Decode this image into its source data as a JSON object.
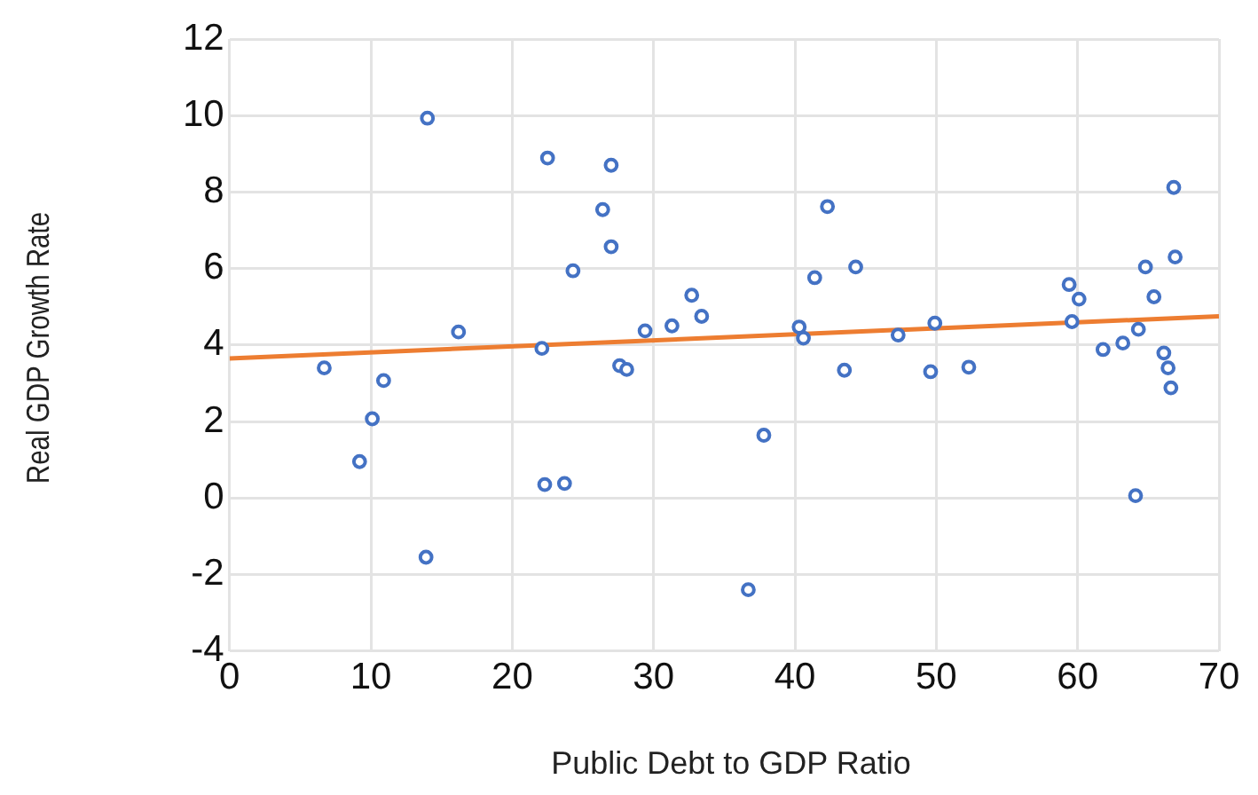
{
  "chart_data": {
    "type": "scatter",
    "xlabel": "Public Debt to GDP Ratio",
    "ylabel": "Real GDP Growth Rate",
    "xlim": [
      0,
      70
    ],
    "xticks": [
      0,
      10,
      20,
      30,
      40,
      50,
      60,
      70
    ],
    "ylim": [
      -4,
      12
    ],
    "yticks": [
      -4,
      -2,
      0,
      2,
      4,
      6,
      8,
      10,
      12
    ],
    "grid": true,
    "legend": false,
    "marker": "circle",
    "series": [
      {
        "type": "scatter",
        "color": "#4472c4",
        "x": [
          6.7,
          10.9,
          10.1,
          9.2,
          14.0,
          13.9,
          16.2,
          22.5,
          22.1,
          22.3,
          23.7,
          24.3,
          27.0,
          26.4,
          27.0,
          29.4,
          27.6,
          28.1,
          31.3,
          32.7,
          33.4,
          37.8,
          36.7,
          40.3,
          40.6,
          41.4,
          42.3,
          44.3,
          43.5,
          47.3,
          49.9,
          49.6,
          52.3,
          59.4,
          60.1,
          59.6,
          61.8,
          63.2,
          64.3,
          64.1,
          64.8,
          65.4,
          66.8,
          66.9,
          66.1,
          66.4,
          66.6
        ],
        "values": [
          3.4,
          3.07,
          2.07,
          0.95,
          9.93,
          -1.55,
          4.34,
          8.89,
          3.91,
          0.35,
          0.38,
          5.94,
          8.7,
          7.54,
          6.57,
          4.37,
          3.46,
          3.36,
          4.5,
          5.3,
          4.75,
          1.64,
          -2.4,
          4.47,
          4.18,
          5.76,
          7.62,
          6.04,
          3.34,
          4.26,
          4.57,
          3.3,
          3.42,
          5.58,
          5.2,
          4.61,
          3.88,
          4.05,
          4.41,
          0.06,
          6.04,
          5.26,
          8.12,
          6.3,
          3.79,
          3.4,
          2.88
        ]
      },
      {
        "type": "line",
        "color": "#ed7d31",
        "marker": "none",
        "x": [
          0,
          70
        ],
        "values": [
          3.65,
          4.75
        ]
      }
    ]
  }
}
